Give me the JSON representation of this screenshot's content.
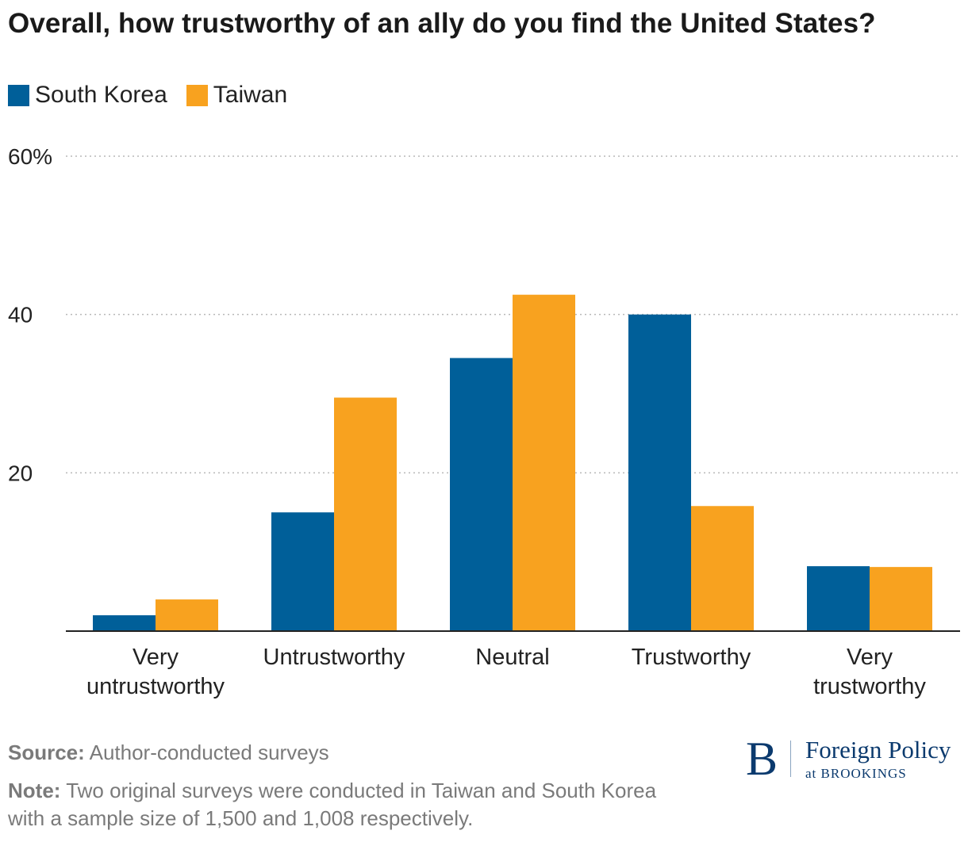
{
  "chart_data": {
    "type": "bar",
    "title": "Overall, how trustworthy of an ally do you find the United States?",
    "categories": [
      [
        "Very",
        "untrustworthy"
      ],
      [
        "Untrustworthy"
      ],
      [
        "Neutral"
      ],
      [
        "Trustworthy"
      ],
      [
        "Very",
        "trustworthy"
      ]
    ],
    "series": [
      {
        "name": "South Korea",
        "color": "#005f99",
        "values": [
          2,
          15,
          34.5,
          40,
          8.2
        ]
      },
      {
        "name": "Taiwan",
        "color": "#f8a21f",
        "values": [
          4,
          29.5,
          42.5,
          15.8,
          8.1
        ]
      }
    ],
    "ylim": [
      0,
      60
    ],
    "yticks": [
      20,
      40,
      60
    ],
    "ytick_labels": [
      "20",
      "40",
      "60%"
    ],
    "grid": true,
    "legend_position": "top-left"
  },
  "footer": {
    "source_label": "Source:",
    "source_text": "Author-conducted surveys",
    "note_label": "Note:",
    "note_text": "Two original surveys were conducted in Taiwan and South Korea with a sample size of 1,500 and 1,008 respectively."
  },
  "logo": {
    "letter": "B",
    "name": "Foreign Policy",
    "sub": "at BROOKINGS"
  }
}
